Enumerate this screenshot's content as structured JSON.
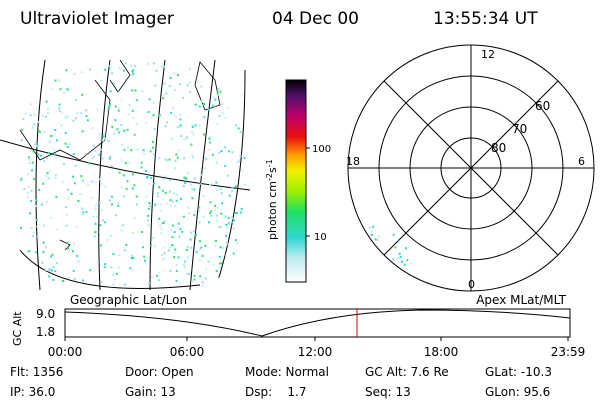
{
  "header": {
    "instrument": "Ultraviolet Imager",
    "date": "04 Dec 00",
    "time": "13:55:34 UT"
  },
  "colorbar": {
    "label": "photon cm",
    "exp1": "-2",
    "unit2": "s",
    "exp2": "-1",
    "ticks": [
      "100",
      "10"
    ]
  },
  "map": {
    "label": "Geographic Lat/Lon"
  },
  "polar": {
    "label": "Apex MLat/MLT",
    "mlt": [
      "12",
      "18",
      "6",
      "0"
    ],
    "mlat": [
      "60",
      "70",
      "80"
    ]
  },
  "altitude": {
    "axis_label": "GC Alt",
    "yticks": [
      "9.0",
      "1.8"
    ],
    "xticks": [
      "00:00",
      "06:00",
      "12:00",
      "18:00",
      "23:59"
    ]
  },
  "footer": {
    "rows": [
      [
        "Flt: 1356",
        "Door: Open",
        "Mode: Normal",
        "GC Alt: 7.6 Re",
        "GLat: -10.3"
      ],
      [
        "IP: 36.0",
        "Gain: 13",
        "Dsp:    1.7",
        "Seq: 13",
        "GLon: 95.6"
      ]
    ]
  }
}
